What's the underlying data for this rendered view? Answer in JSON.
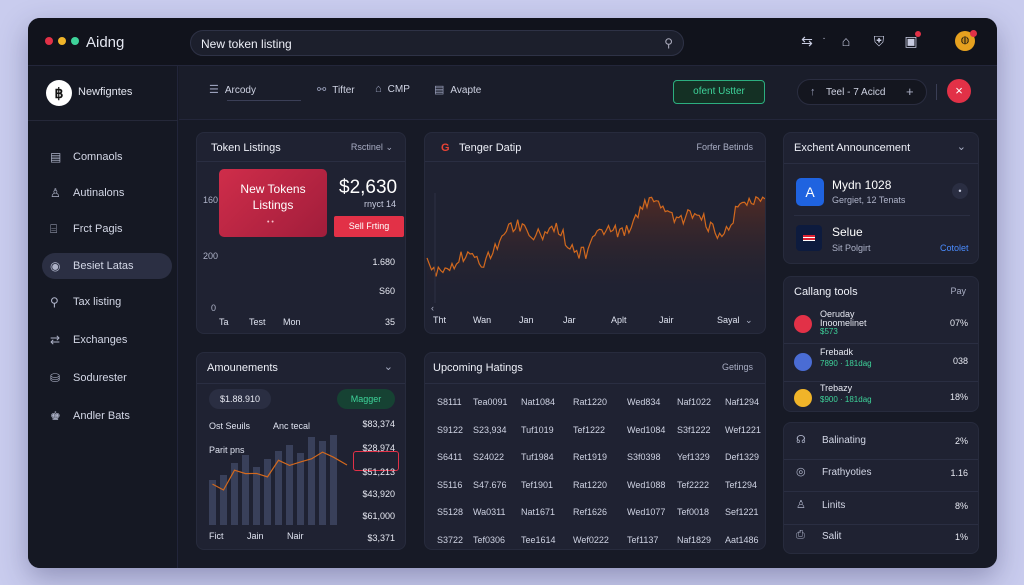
{
  "app": {
    "title": "Aidng"
  },
  "colors": {
    "accent_red": "#e23147",
    "accent_green": "#3ed39a",
    "chart_orange": "#d2691e",
    "background": "#171a26"
  },
  "search": {
    "value": "New token listing",
    "icon": "search-icon"
  },
  "titlebar_icons": [
    {
      "name": "translate-icon",
      "glyph": "⇆"
    },
    {
      "name": "dot-icon",
      "glyph": "·"
    },
    {
      "name": "home-icon",
      "glyph": "⌂"
    },
    {
      "name": "shield-icon",
      "glyph": "⛨"
    },
    {
      "name": "wallet-icon",
      "glyph": "▣"
    }
  ],
  "sidebar": {
    "brand": "Newfigntes",
    "items": [
      {
        "icon": "▤",
        "icon_name": "wallet-icon",
        "label": "Comnaols"
      },
      {
        "icon": "♙",
        "icon_name": "user-icon",
        "label": "Autinalons"
      },
      {
        "icon": "⌸",
        "icon_name": "page-icon",
        "label": "Frct Pagis"
      },
      {
        "icon": "◉",
        "icon_name": "coin-icon",
        "label": "Besiet Latas"
      },
      {
        "icon": "⚲",
        "icon_name": "tag-icon",
        "label": "Tax listing"
      },
      {
        "icon": "⇄",
        "icon_name": "exchange-icon",
        "label": "Exchanges"
      },
      {
        "icon": "⛁",
        "icon_name": "database-icon",
        "label": "Sodurester"
      },
      {
        "icon": "♚",
        "icon_name": "people-icon",
        "label": "Andler Bats"
      }
    ],
    "info_label": "i"
  },
  "toolbar": {
    "menu_label": "Arcody",
    "filter_label": "Tifter",
    "cmp_label": "CMP",
    "avapte_label": "Avapte",
    "green_button": "ofent Ustter",
    "pill_label": "Teel - 7 Acicd",
    "pill_plus": "+",
    "close": "×"
  },
  "token_listings": {
    "title": "Token Listings",
    "dropdown": "Rsctinel",
    "card_title": "New Tokens Listings",
    "card_dots": "• •",
    "price": "$2,630",
    "price_sub": "rnyct 14",
    "sell_button": "Sell Frting",
    "y_ticks": [
      "160",
      "200",
      "0"
    ],
    "values": [
      "1.680",
      "S60",
      "35"
    ],
    "x_ticks": [
      "Ta",
      "Test",
      "Mon"
    ]
  },
  "tenger": {
    "title": "Tenger Datip",
    "right_label": "Forfer Betinds",
    "x_ticks": [
      "Tht",
      "Wan",
      "Jan",
      "Jar",
      "Aplt",
      "Jair",
      "Sayal"
    ]
  },
  "announcements_card": {
    "title": "Exchent Announcement",
    "items": [
      {
        "title": "Mydn 1028",
        "sub": "Gergiet, 12 Tenats",
        "badge": "A",
        "bullet": "•"
      },
      {
        "title": "Selue",
        "sub": "Sit Polgirt",
        "link": "Cotolet"
      }
    ]
  },
  "amounements": {
    "title": "Amounements",
    "amount": "$1.88.910",
    "button": "Magger",
    "label1": "Ost Seuils",
    "label2": "Anc tecal",
    "label3": "Parit pns",
    "values": [
      "$83,374",
      "$28,974",
      "$51,213",
      "$43,920",
      "$61,000",
      "$3,371"
    ],
    "x_ticks": [
      "Fict",
      "Jain",
      "Nair"
    ],
    "bars": [
      45,
      50,
      62,
      70,
      58,
      66,
      74,
      80,
      72,
      88,
      84,
      90
    ]
  },
  "upcoming": {
    "title": "Upcoming Hatings",
    "right_label": "Getings",
    "rows": [
      [
        "S8111",
        "Tea0091",
        "Nat1084",
        "Rat1220",
        "Wed834",
        "Naf1022",
        "Naf1294"
      ],
      [
        "S9122",
        "S23,934",
        "Tuf1019",
        "Tef1222",
        "Wed1084",
        "S3f1222",
        "Wef1221"
      ],
      [
        "S6411",
        "S24022",
        "Tuf1984",
        "Ret1919",
        "S3f0398",
        "Yef1329",
        "Def1329"
      ],
      [
        "S5116",
        "S47.676",
        "Tef1901",
        "Rat1220",
        "Wed1088",
        "Tef2222",
        "Tef1294"
      ],
      [
        "S5128",
        "Wa0311",
        "Nat1671",
        "Ref1626",
        "Wed1077",
        "Tef0018",
        "Sef1221"
      ],
      [
        "S3722",
        "Tef0306",
        "Tee1614",
        "Wef0222",
        "Tef1137",
        "Naf1829",
        "Aat1486"
      ]
    ]
  },
  "calling_tools": {
    "title": "Callang tools",
    "right_label": "Pay",
    "items": [
      {
        "name": "Oeruday",
        "name2": "Inoomelinet",
        "sub": "$573",
        "pct": "07%",
        "color": "#e23147"
      },
      {
        "name": "Frebadk",
        "name2": "",
        "sub": "7890 · 181dag",
        "pct": "038",
        "color": "#4a6cd4"
      },
      {
        "name": "Trebazy",
        "name2": "",
        "sub": "$900 · 181dag",
        "pct": "18%",
        "color": "#f0b429"
      }
    ]
  },
  "lower_list": {
    "items": [
      {
        "icon": "☊",
        "icon_name": "bell-icon",
        "label": "Balinating",
        "value": "2%"
      },
      {
        "icon": "◎",
        "icon_name": "target-icon",
        "label": "Frathyoties",
        "value": "1.16"
      },
      {
        "icon": "♙",
        "icon_name": "lock-icon",
        "label": "Linits",
        "value": "8%"
      },
      {
        "icon": "⎙",
        "icon_name": "clipboard-icon",
        "label": "Salit",
        "value": "1%"
      }
    ]
  }
}
